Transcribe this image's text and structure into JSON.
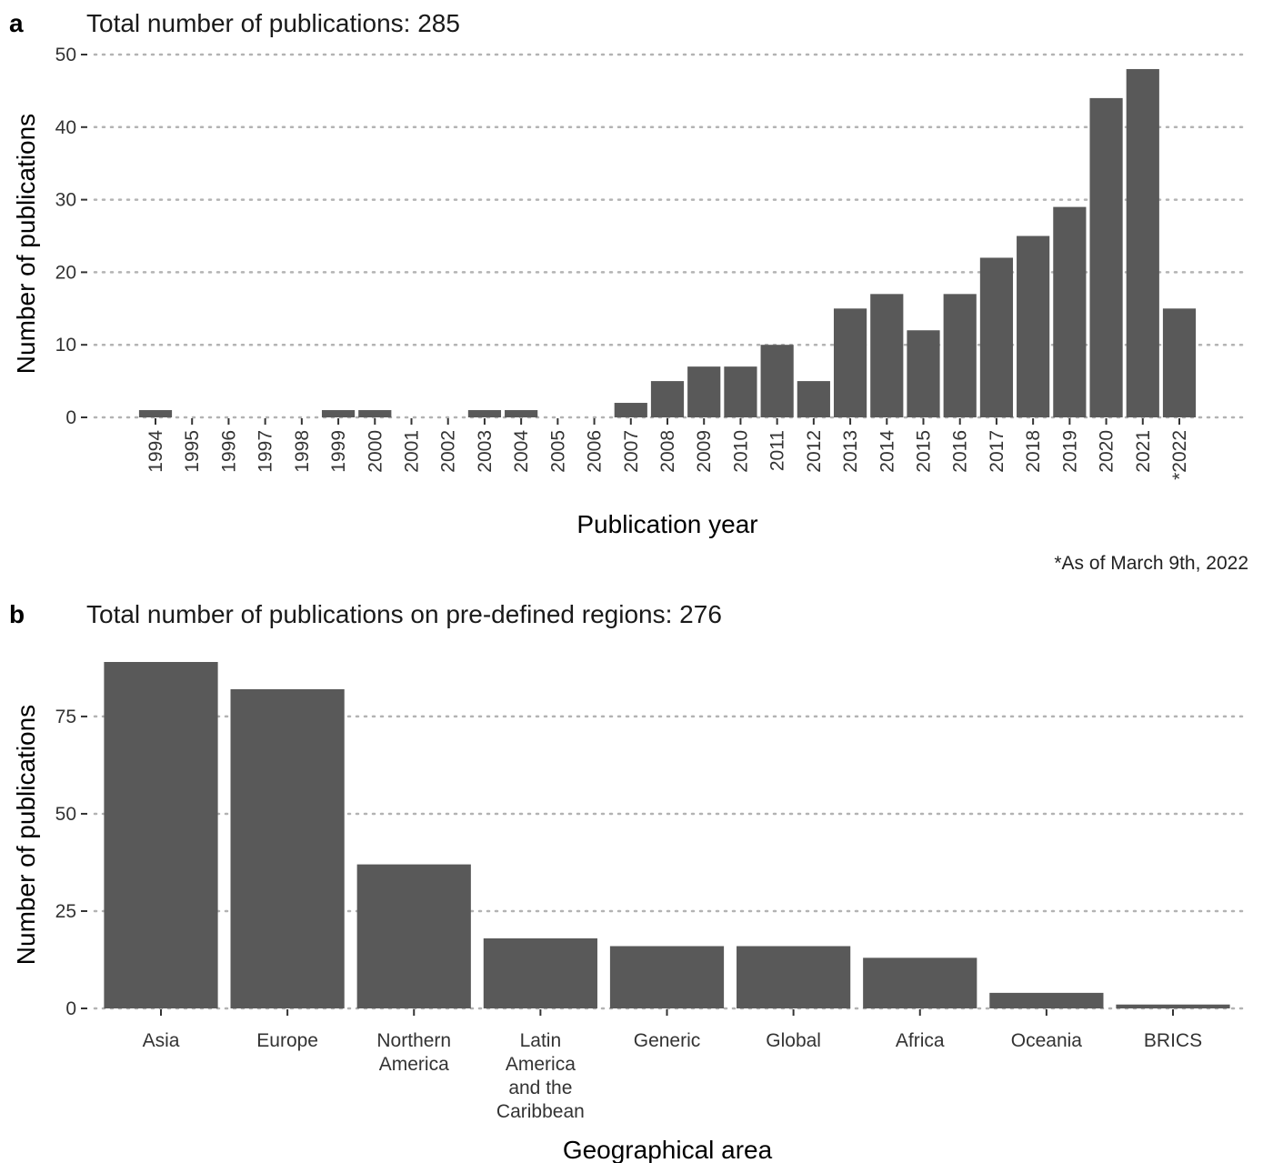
{
  "panel_a": {
    "letter": "a",
    "title": "Total number of publications: 285",
    "footnote": "*As of March 9th, 2022"
  },
  "panel_b": {
    "letter": "b",
    "title": "Total number of publications on pre-defined regions: 276"
  },
  "chart_data": [
    {
      "type": "bar",
      "title": "Total number of publications: 285",
      "xlabel": "Publication year",
      "ylabel": "Number of publications",
      "ylim": [
        0,
        50
      ],
      "yticks": [
        0,
        10,
        20,
        30,
        40,
        50
      ],
      "grid": "horizontal dotted",
      "bar_color": "#595959",
      "categories": [
        "1994",
        "1995",
        "1996",
        "1997",
        "1998",
        "1999",
        "2000",
        "2001",
        "2002",
        "2003",
        "2004",
        "2005",
        "2006",
        "2007",
        "2008",
        "2009",
        "2010",
        "2011",
        "2012",
        "2013",
        "2014",
        "2015",
        "2016",
        "2017",
        "2018",
        "2019",
        "2020",
        "2021",
        "*2022"
      ],
      "values": [
        1,
        0,
        0,
        0,
        0,
        1,
        1,
        0,
        0,
        1,
        1,
        0,
        0,
        2,
        5,
        7,
        7,
        10,
        5,
        15,
        17,
        12,
        17,
        22,
        25,
        29,
        44,
        48,
        15
      ]
    },
    {
      "type": "bar",
      "title": "Total number of publications on pre-defined regions: 276",
      "xlabel": "Geographical area",
      "ylabel": "Number of publications",
      "ylim": [
        0,
        89
      ],
      "yticks": [
        0,
        25,
        50,
        75
      ],
      "grid": "horizontal dotted",
      "bar_color": "#595959",
      "categories": [
        "Asia",
        "Europe",
        "Northern America",
        "Latin America and the Caribbean",
        "Generic",
        "Global",
        "Africa",
        "Oceania",
        "BRICS"
      ],
      "category_label_lines": [
        [
          "Asia"
        ],
        [
          "Europe"
        ],
        [
          "Northern",
          "America"
        ],
        [
          "Latin",
          "America",
          "and the",
          "Caribbean"
        ],
        [
          "Generic"
        ],
        [
          "Global"
        ],
        [
          "Africa"
        ],
        [
          "Oceania"
        ],
        [
          "BRICS"
        ]
      ],
      "values": [
        89,
        82,
        37,
        18,
        16,
        16,
        13,
        4,
        1
      ]
    }
  ]
}
